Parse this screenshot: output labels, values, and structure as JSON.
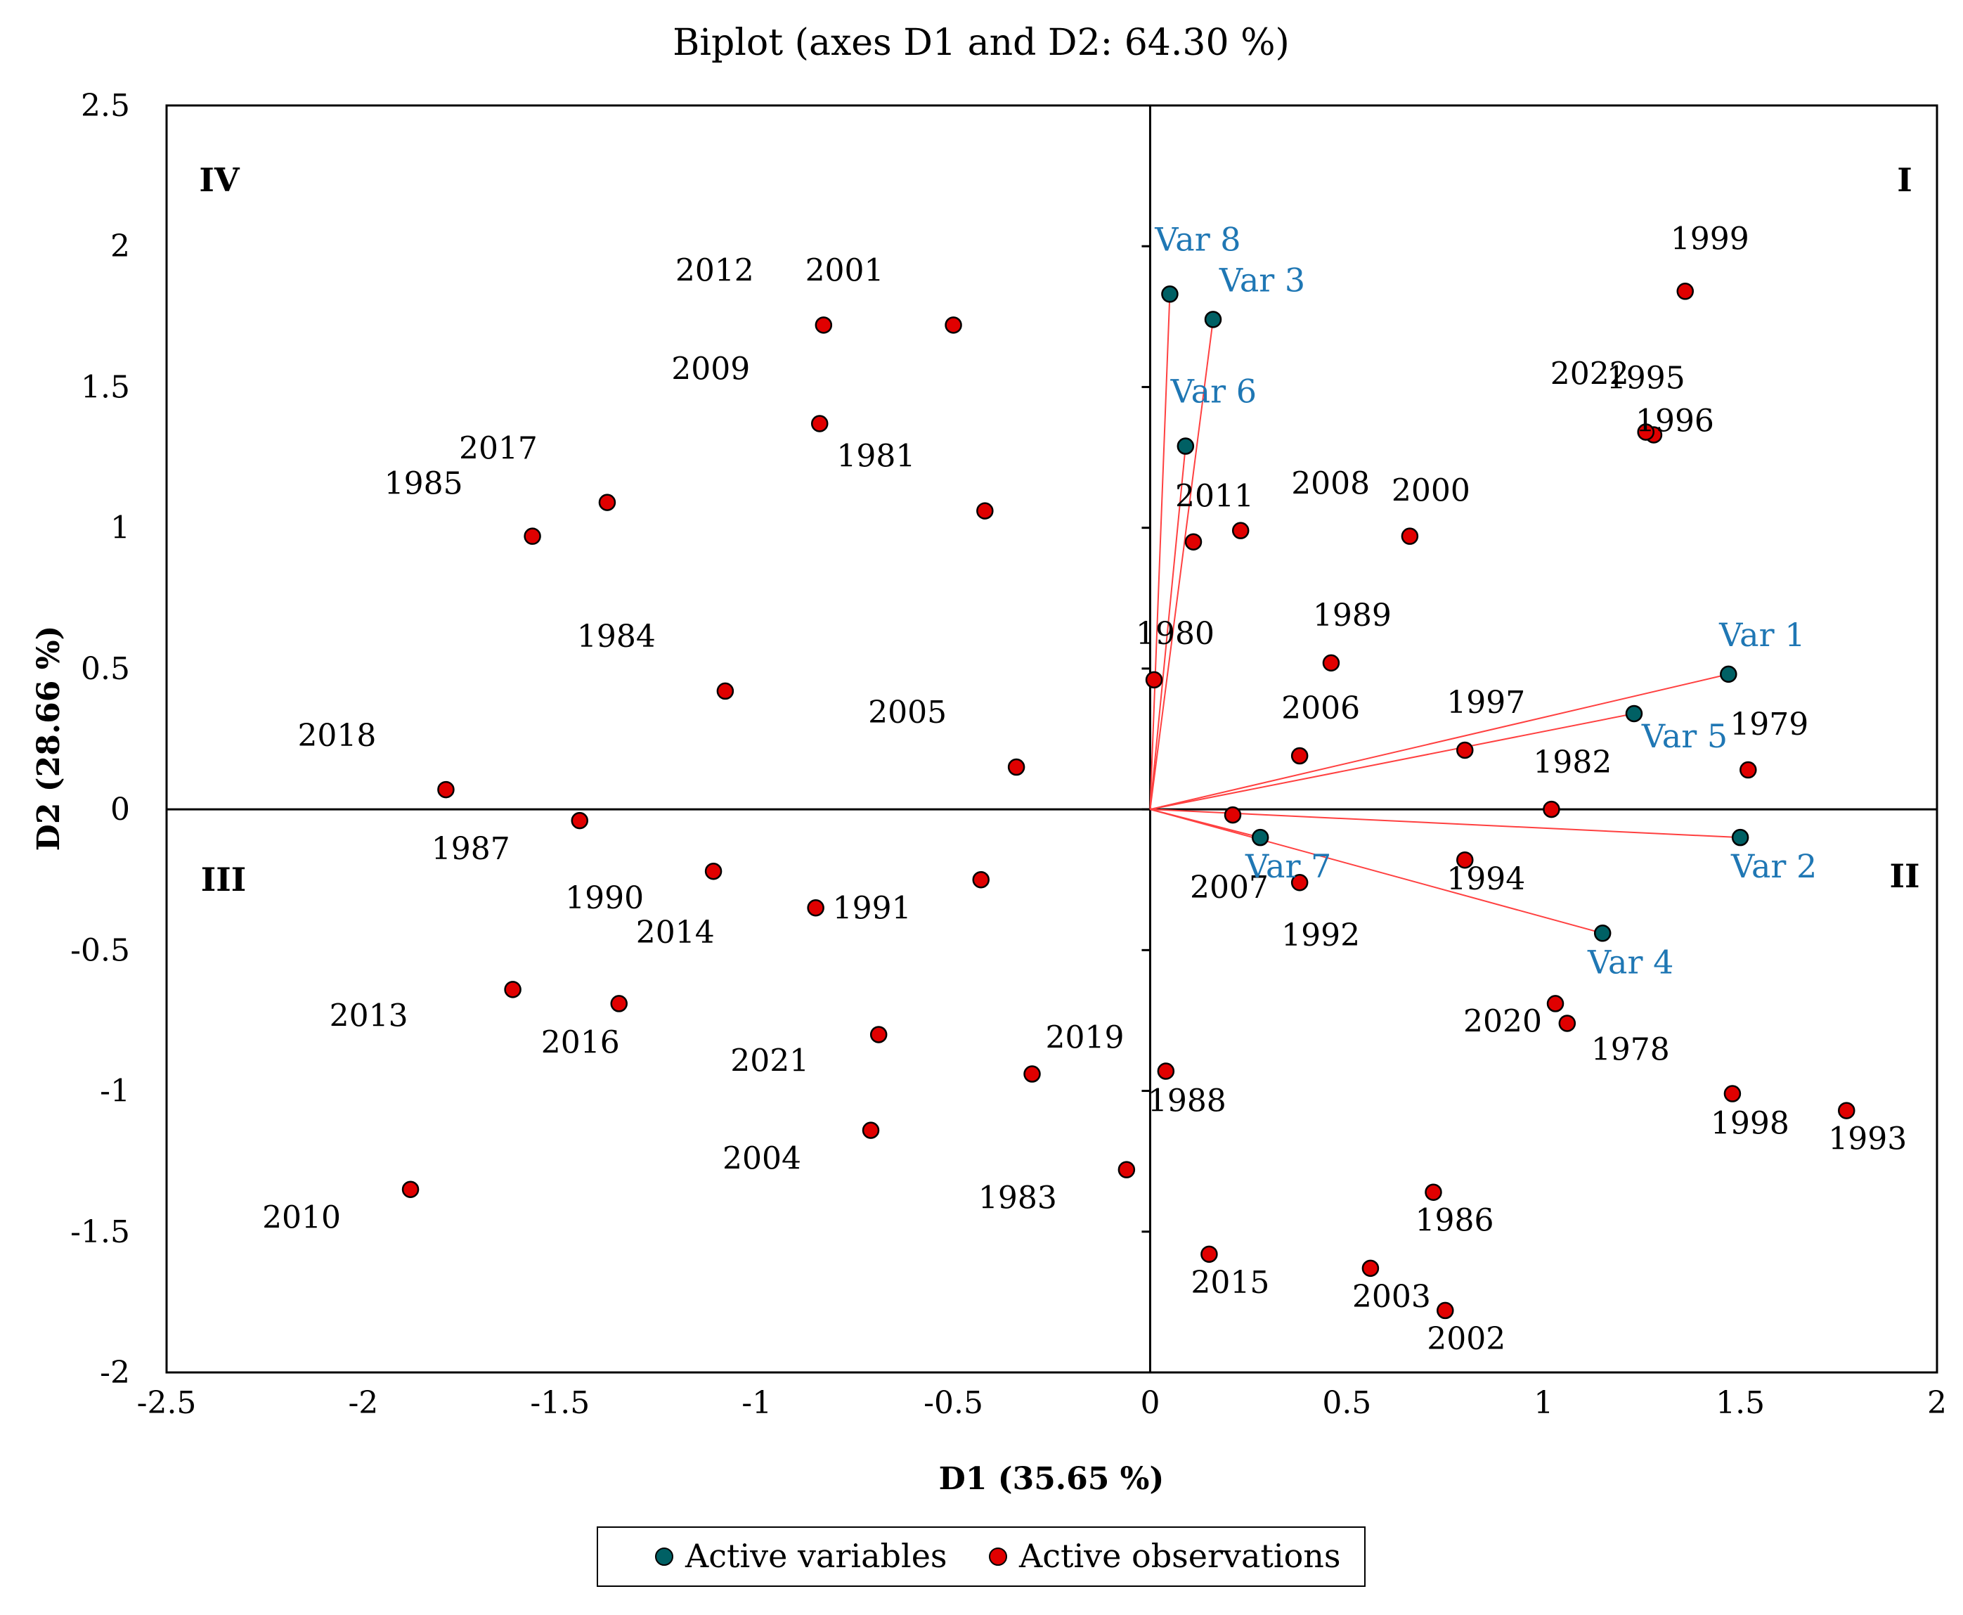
{
  "chart_data": {
    "type": "scatter",
    "title": "Biplot (axes D1 and D2: 64.30 %)",
    "xlabel": "D1 (35.65 %)",
    "ylabel": "D2 (28.66 %)",
    "xlim": [
      -2.5,
      2
    ],
    "ylim": [
      -2,
      2.5
    ],
    "xticks": [
      "-2.5",
      "-2",
      "-1.5",
      "-1",
      "-0.5",
      "0",
      "0.5",
      "1",
      "1.5",
      "2"
    ],
    "yticks": [
      "-2",
      "-1.5",
      "-1",
      "-0.5",
      "0",
      "0.5",
      "1",
      "1.5",
      "2",
      "2.5"
    ],
    "grid": false,
    "legend_position": "bottom",
    "quadrants": [
      "I",
      "II",
      "III",
      "IV"
    ],
    "series": [
      {
        "name": "Active variables",
        "color": "#006064",
        "points": [
          {
            "label": "Var 1",
            "x": 1.47,
            "y": 0.48
          },
          {
            "label": "Var 2",
            "x": 1.5,
            "y": -0.1
          },
          {
            "label": "Var 3",
            "x": 0.16,
            "y": 1.74
          },
          {
            "label": "Var 4",
            "x": 1.15,
            "y": -0.44
          },
          {
            "label": "Var 5",
            "x": 1.23,
            "y": 0.34
          },
          {
            "label": "Var 6",
            "x": 0.09,
            "y": 1.29
          },
          {
            "label": "Var 7",
            "x": 0.28,
            "y": -0.1
          },
          {
            "label": "Var 8",
            "x": 0.05,
            "y": 1.83
          }
        ]
      },
      {
        "name": "Active observations",
        "color": "#e00000",
        "points": [
          {
            "label": "1999",
            "x": 1.36,
            "y": 1.84
          },
          {
            "label": "1995",
            "x": 1.26,
            "y": 1.34
          },
          {
            "label": "1996",
            "x": 1.28,
            "y": 1.33
          },
          {
            "label": "2022",
            "x": 1.26,
            "y": 1.34
          },
          {
            "label": "2000",
            "x": 0.66,
            "y": 0.97
          },
          {
            "label": "2008",
            "x": 0.23,
            "y": 0.99
          },
          {
            "label": "2011",
            "x": 0.11,
            "y": 0.95
          },
          {
            "label": "1989",
            "x": 0.46,
            "y": 0.52
          },
          {
            "label": "1980",
            "x": 0.01,
            "y": 0.46
          },
          {
            "label": "2006",
            "x": 0.38,
            "y": 0.19
          },
          {
            "label": "1997",
            "x": 0.8,
            "y": 0.21
          },
          {
            "label": "1979",
            "x": 1.52,
            "y": 0.14
          },
          {
            "label": "1982",
            "x": 1.02,
            "y": 0.0
          },
          {
            "label": "2007",
            "x": 0.21,
            "y": -0.02
          },
          {
            "label": "1994",
            "x": 0.8,
            "y": -0.18
          },
          {
            "label": "1992",
            "x": 0.38,
            "y": -0.26
          },
          {
            "label": "2020",
            "x": 1.03,
            "y": -0.69
          },
          {
            "label": "1978",
            "x": 1.06,
            "y": -0.76
          },
          {
            "label": "1998",
            "x": 1.48,
            "y": -1.01
          },
          {
            "label": "1993",
            "x": 1.77,
            "y": -1.07
          },
          {
            "label": "1988",
            "x": 0.04,
            "y": -0.93
          },
          {
            "label": "1986",
            "x": 0.72,
            "y": -1.36
          },
          {
            "label": "2015",
            "x": 0.15,
            "y": -1.58
          },
          {
            "label": "2003",
            "x": 0.56,
            "y": -1.63
          },
          {
            "label": "2002",
            "x": 0.75,
            "y": -1.78
          },
          {
            "label": "2012",
            "x": -0.83,
            "y": 1.72
          },
          {
            "label": "2001",
            "x": -0.5,
            "y": 1.72
          },
          {
            "label": "2009",
            "x": -0.84,
            "y": 1.37
          },
          {
            "label": "1981",
            "x": -0.42,
            "y": 1.06
          },
          {
            "label": "2017",
            "x": -1.38,
            "y": 1.09
          },
          {
            "label": "1985",
            "x": -1.57,
            "y": 0.97
          },
          {
            "label": "1984",
            "x": -1.08,
            "y": 0.42
          },
          {
            "label": "2005",
            "x": -0.34,
            "y": 0.15
          },
          {
            "label": "2018",
            "x": -1.79,
            "y": 0.07
          },
          {
            "label": "1987",
            "x": -1.45,
            "y": -0.04
          },
          {
            "label": "1990",
            "x": -1.11,
            "y": -0.22
          },
          {
            "label": "2014",
            "x": -0.43,
            "y": -0.25
          },
          {
            "label": "1991",
            "x": -0.85,
            "y": -0.35
          },
          {
            "label": "2013",
            "x": -1.62,
            "y": -0.64
          },
          {
            "label": "2016",
            "x": -1.35,
            "y": -0.69
          },
          {
            "label": "2021",
            "x": -0.69,
            "y": -0.8
          },
          {
            "label": "2019",
            "x": -0.3,
            "y": -0.94
          },
          {
            "label": "2004",
            "x": -0.71,
            "y": -1.14
          },
          {
            "label": "1983",
            "x": -0.06,
            "y": -1.28
          },
          {
            "label": "2010",
            "x": -1.88,
            "y": -1.35
          }
        ]
      }
    ],
    "legend": [
      "Active variables",
      "Active observations"
    ]
  }
}
